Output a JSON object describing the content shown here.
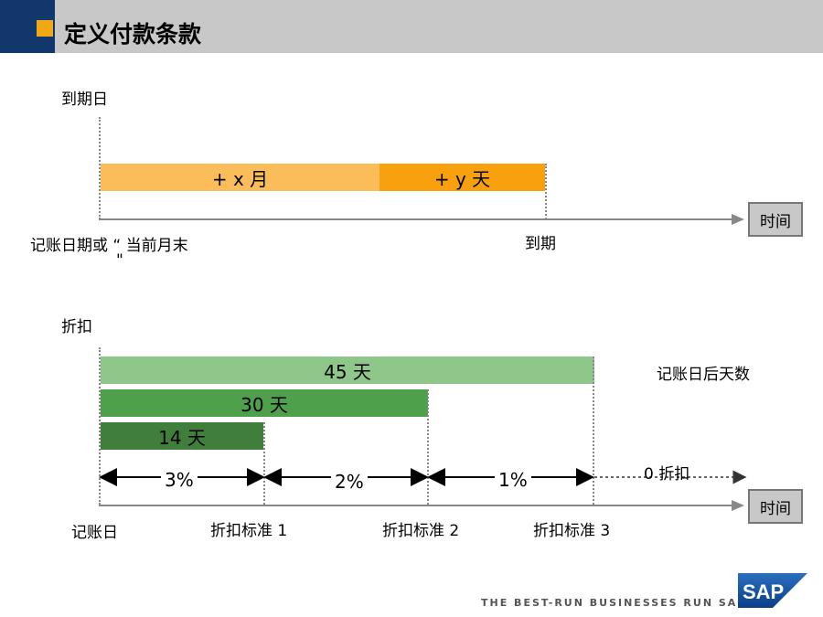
{
  "header": {
    "title": "定义付款条款"
  },
  "top_diagram": {
    "y_label": "到期日",
    "bar_month_label": "+ x 月",
    "bar_day_label": "+ y 天",
    "start_label_line1": "记账日期或 “ 当前月末",
    "start_label_line2": "\"",
    "due_label": "到期",
    "time_label": "时间",
    "colors": {
      "month_bar": "#fbbd5a",
      "day_bar": "#f9a00f"
    }
  },
  "bottom_diagram": {
    "y_label": "折扣",
    "bars": [
      {
        "label": "45 天",
        "color": "#8fc78a"
      },
      {
        "label": "30 天",
        "color": "#4fa04a"
      },
      {
        "label": "14 天",
        "color": "#3f7f3b"
      }
    ],
    "days_after_posting_label": "记账日后天数",
    "segments": [
      "3%",
      "2%",
      "1%"
    ],
    "no_discount_label": "0 折扣",
    "posting_date_label": "记账日",
    "criteria": [
      "折扣标准 1",
      "折扣标准 2",
      "折扣标准 3"
    ],
    "time_label": "时间"
  },
  "footer": {
    "tagline": "THE BEST-RUN BUSINESSES RUN SAP",
    "logo_text": "SAP"
  }
}
